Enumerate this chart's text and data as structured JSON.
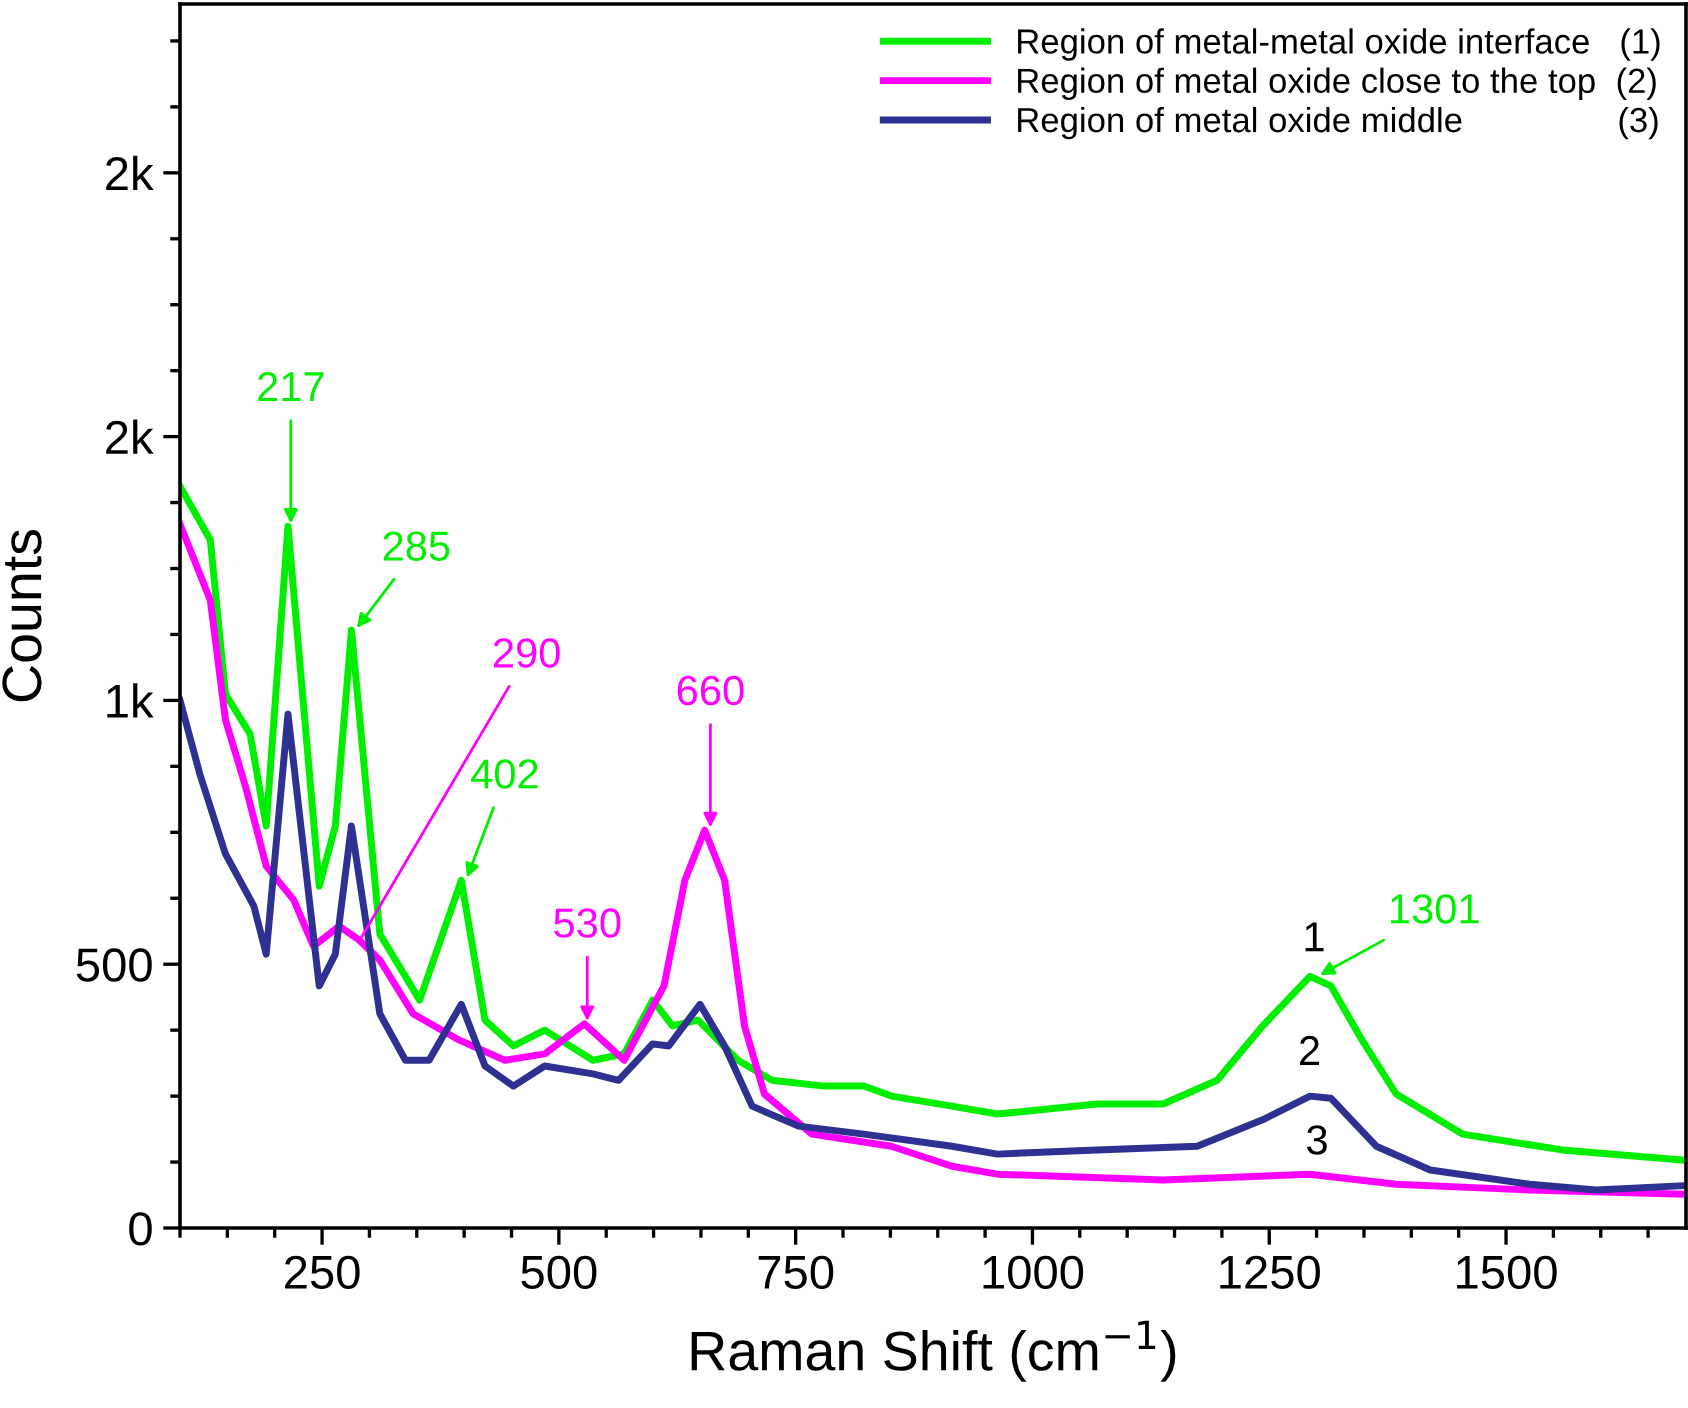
{
  "chart_data": {
    "type": "line",
    "xlabel": "Raman Shift (cm$^{−1}$)",
    "ylabel": "Counts",
    "xlim": [
      100,
      1690
    ],
    "xticks": [
      250,
      500,
      750,
      1000,
      1250,
      1500
    ],
    "ylim": [
      0,
      2320
    ],
    "yticks": [
      0,
      500,
      {
        "value": 1000,
        "label": "1k"
      },
      {
        "value": 1500,
        "label": "2k"
      },
      {
        "value": 2000,
        "label": "2k"
      }
    ],
    "legend": "top right",
    "grid": false,
    "marker": "none",
    "line_style": "solid",
    "series": [
      {
        "name": "Region of metal-metal oxide interface   (1)",
        "color": "#00ee00",
        "x": [
          100,
          132,
          148,
          174,
          191,
          214,
          247,
          264,
          281,
          311,
          353,
          397,
          422,
          452,
          485,
          536,
          569,
          599,
          620,
          647,
          689,
          725,
          780,
          822,
          851,
          915,
          963,
          1068,
          1138,
          1195,
          1243,
          1293,
          1315,
          1348,
          1384,
          1454,
          1559,
          1685
        ],
        "values": [
          1406,
          1304,
          1012,
          936,
          762,
          1330,
          648,
          762,
          1133,
          557,
          432,
          659,
          394,
          345,
          375,
          318,
          330,
          432,
          383,
          394,
          318,
          280,
          269,
          269,
          250,
          231,
          216,
          235,
          235,
          280,
          383,
          477,
          459,
          356,
          254,
          178,
          148,
          129
        ]
      },
      {
        "name": "Region of metal oxide close to the top  (2)",
        "color": "#ff00ff",
        "x": [
          100,
          132,
          148,
          169,
          191,
          220,
          241,
          268,
          289,
          311,
          346,
          395,
          443,
          485,
          527,
          569,
          611,
          633,
          654,
          675,
          696,
          717,
          767,
          851,
          915,
          963,
          1138,
          1293,
          1384,
          1525,
          1685
        ],
        "values": [
          1334,
          1190,
          963,
          838,
          686,
          622,
          534,
          572,
          546,
          508,
          406,
          356,
          318,
          330,
          387,
          318,
          459,
          659,
          754,
          659,
          383,
          254,
          178,
          155,
          117,
          102,
          91,
          102,
          83,
          72,
          64
        ]
      },
      {
        "name": "Region of metal oxide middle                (3)",
        "color": "#2e3192",
        "x": [
          100,
          121,
          148,
          178,
          191,
          214,
          247,
          264,
          281,
          311,
          338,
          363,
          397,
          422,
          452,
          485,
          536,
          563,
          599,
          616,
          649,
          675,
          704,
          753,
          822,
          915,
          963,
          1068,
          1174,
          1243,
          1293,
          1315,
          1363,
          1420,
          1525,
          1595,
          1685
        ],
        "values": [
          1000,
          860,
          709,
          610,
          519,
          974,
          459,
          519,
          762,
          406,
          318,
          318,
          424,
          307,
          269,
          307,
          292,
          280,
          349,
          345,
          424,
          345,
          231,
          193,
          178,
          155,
          140,
          148,
          155,
          205,
          250,
          246,
          155,
          110,
          83,
          72,
          80
        ]
      }
    ],
    "annotations": [
      {
        "text": "217",
        "x": 217,
        "y": 1330
      },
      {
        "text": "285",
        "x": 285,
        "y": 1133
      },
      {
        "text": "290",
        "x": 290,
        "y": 546
      },
      {
        "text": "402",
        "x": 402,
        "y": 659
      },
      {
        "text": "530",
        "x": 530,
        "y": 387
      },
      {
        "text": "660",
        "x": 660,
        "y": 754
      },
      {
        "text": "1301",
        "x": 1301,
        "y": 477
      },
      "1",
      "2",
      "3"
    ]
  }
}
